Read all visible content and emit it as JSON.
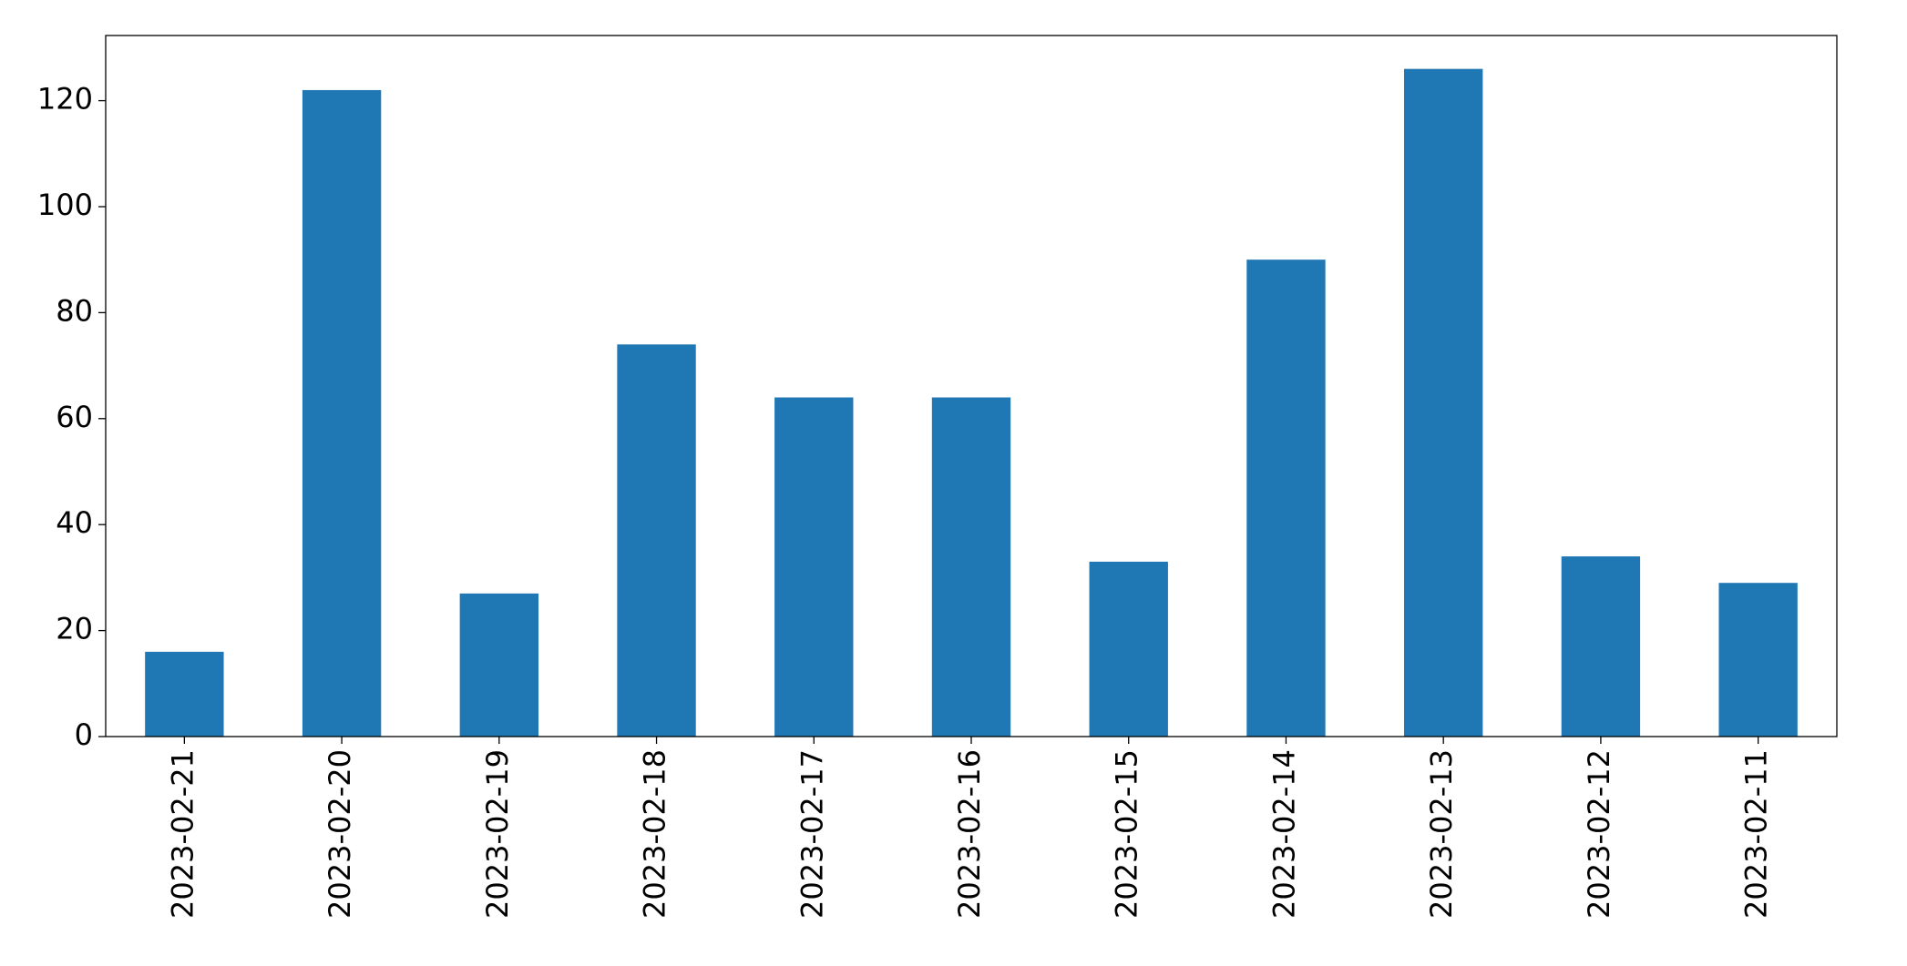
{
  "chart_data": {
    "type": "bar",
    "categories": [
      "2023-02-21",
      "2023-02-20",
      "2023-02-19",
      "2023-02-18",
      "2023-02-17",
      "2023-02-16",
      "2023-02-15",
      "2023-02-14",
      "2023-02-13",
      "2023-02-12",
      "2023-02-11"
    ],
    "values": [
      16,
      122,
      27,
      74,
      64,
      64,
      33,
      90,
      126,
      34,
      29
    ],
    "color": "#1f77b4",
    "ylim": [
      0,
      132.3
    ],
    "yticks": [
      0,
      20,
      40,
      60,
      80,
      100,
      120
    ],
    "grid": false
  }
}
